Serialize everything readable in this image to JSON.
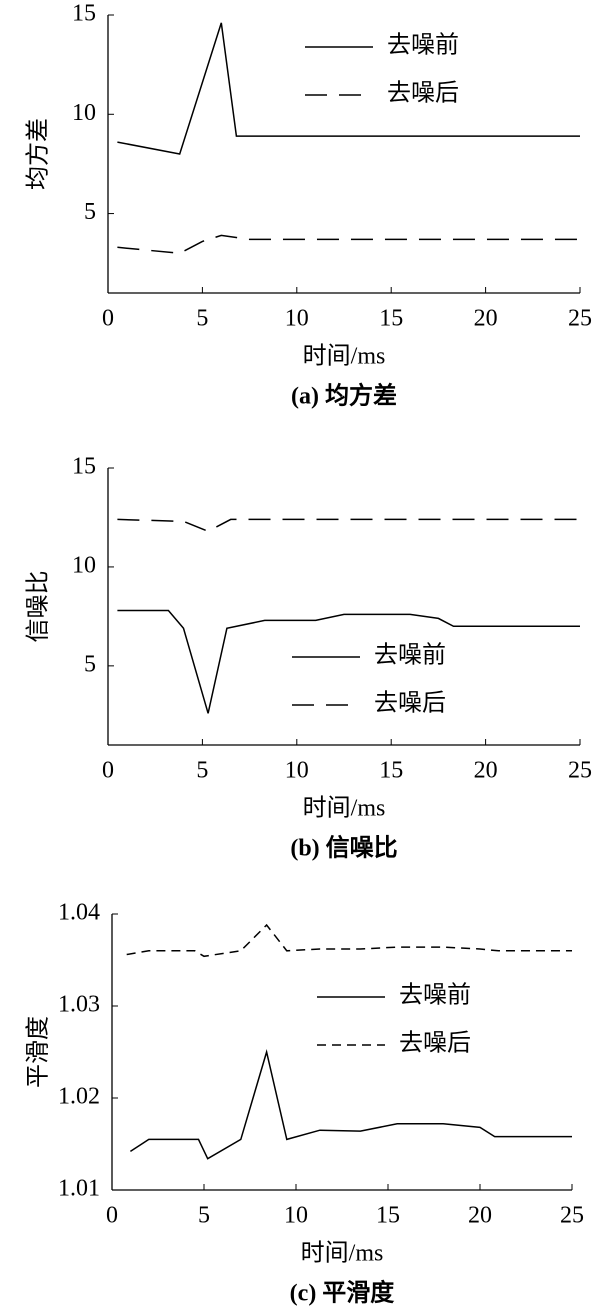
{
  "chart_data": [
    {
      "type": "line",
      "caption": "(a) 均方差",
      "xlabel": "时间/ms",
      "ylabel": "均方差",
      "xlim": [
        0,
        25
      ],
      "xticks": [
        0,
        5,
        10,
        15,
        20,
        25
      ],
      "ylim": [
        1,
        15
      ],
      "yticks": [
        5,
        10,
        15
      ],
      "legend": "upper right",
      "series": [
        {
          "name": "去噪前",
          "color": "#000000",
          "linestyle": "solid",
          "x": [
            0.5,
            3.8,
            6.0,
            6.8,
            25
          ],
          "values": [
            8.6,
            8.0,
            14.6,
            8.9,
            8.9
          ]
        },
        {
          "name": "去噪后",
          "color": "#000000",
          "linestyle": "dashed",
          "x": [
            0.5,
            3.8,
            5.0,
            6.0,
            7.5,
            25
          ],
          "values": [
            3.3,
            3.0,
            3.6,
            3.9,
            3.7,
            3.7
          ]
        }
      ]
    },
    {
      "type": "line",
      "caption": "(b) 信噪比",
      "xlabel": "时间/ms",
      "ylabel": "信噪比",
      "xlim": [
        0,
        25
      ],
      "xticks": [
        0,
        5,
        10,
        15,
        20,
        25
      ],
      "ylim": [
        1,
        15
      ],
      "yticks": [
        5,
        10,
        15
      ],
      "legend": "lower center",
      "series": [
        {
          "name": "去噪前",
          "color": "#000000",
          "linestyle": "solid",
          "x": [
            0.5,
            3.2,
            4.0,
            5.3,
            6.3,
            8.3,
            11.0,
            12.5,
            16.0,
            17.5,
            18.3,
            25
          ],
          "values": [
            7.8,
            7.8,
            6.9,
            2.6,
            6.9,
            7.3,
            7.3,
            7.6,
            7.6,
            7.4,
            7.0,
            7.0
          ]
        },
        {
          "name": "去噪后",
          "color": "#000000",
          "linestyle": "dashed",
          "x": [
            0.5,
            4.0,
            5.3,
            6.5,
            25
          ],
          "values": [
            12.4,
            12.3,
            11.8,
            12.4,
            12.4
          ]
        }
      ]
    },
    {
      "type": "line",
      "caption": "(c) 平滑度",
      "xlabel": "时间/ms",
      "ylabel": "平滑度",
      "xlim": [
        0,
        25
      ],
      "xticks": [
        0,
        5,
        10,
        15,
        20,
        25
      ],
      "ylim": [
        1.01,
        1.04
      ],
      "yticks": [
        1.01,
        1.02,
        1.03,
        1.04
      ],
      "legend": "center right",
      "series": [
        {
          "name": "去噪前",
          "color": "#000000",
          "linestyle": "solid",
          "x": [
            1.0,
            2.0,
            4.7,
            5.2,
            7.0,
            8.4,
            9.5,
            11.3,
            13.5,
            15.5,
            18.0,
            20.0,
            20.8,
            25
          ],
          "values": [
            1.0142,
            1.0155,
            1.0155,
            1.0134,
            1.0155,
            1.025,
            1.0155,
            1.0165,
            1.0164,
            1.0172,
            1.0172,
            1.0168,
            1.0158,
            1.0158
          ]
        },
        {
          "name": "去噪后",
          "color": "#000000",
          "linestyle": "short-dashed",
          "x": [
            0.8,
            2.0,
            4.5,
            5.0,
            7.0,
            8.4,
            9.5,
            11.3,
            13.5,
            15.5,
            18.0,
            20.0,
            21.0,
            25
          ],
          "values": [
            1.0356,
            1.036,
            1.036,
            1.0354,
            1.036,
            1.0388,
            1.036,
            1.0362,
            1.0362,
            1.0364,
            1.0364,
            1.0362,
            1.036,
            1.036
          ]
        }
      ]
    }
  ]
}
